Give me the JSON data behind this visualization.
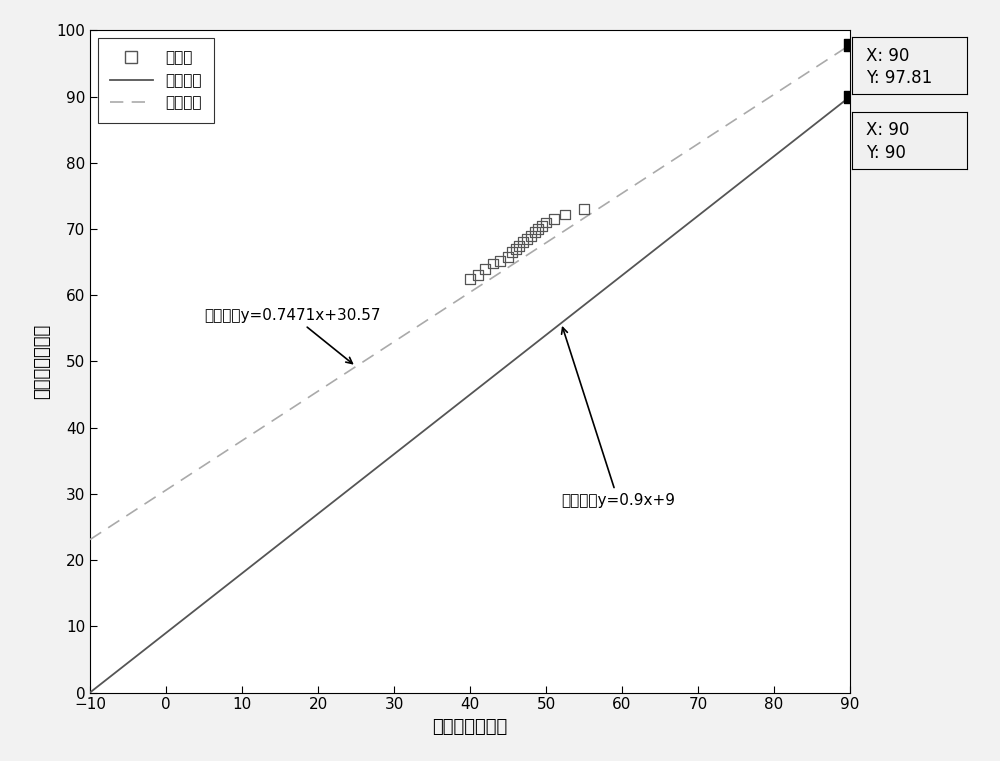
{
  "title": "",
  "xlabel": "油温（摄氏度）",
  "ylabel": "油位（百分比）",
  "xlim": [
    -10,
    90
  ],
  "ylim": [
    0,
    100
  ],
  "xticks": [
    -10,
    0,
    10,
    20,
    30,
    40,
    50,
    60,
    70,
    80,
    90
  ],
  "yticks": [
    0,
    10,
    20,
    30,
    40,
    50,
    60,
    70,
    80,
    90,
    100
  ],
  "std_line_slope": 0.9,
  "std_line_intercept": 9,
  "fit_line_slope": 0.7471,
  "fit_line_intercept": 30.57,
  "scatter_x": [
    40.0,
    41.0,
    42.0,
    43.0,
    44.0,
    45.0,
    45.5,
    46.0,
    46.5,
    47.0,
    47.5,
    48.0,
    48.5,
    49.0,
    49.5,
    50.0,
    51.0,
    52.5,
    55.0
  ],
  "scatter_y": [
    62.5,
    63.0,
    64.0,
    64.8,
    65.2,
    65.8,
    66.5,
    67.0,
    67.5,
    68.0,
    68.5,
    69.0,
    69.5,
    70.0,
    70.5,
    71.0,
    71.5,
    72.2,
    73.0
  ],
  "highlight_point1_x": 90,
  "highlight_point1_y": 97.81,
  "highlight_point2_x": 90,
  "highlight_point2_y": 90,
  "std_line_color": "#555555",
  "fit_line_color": "#aaaaaa",
  "scatter_color": "#555555",
  "annotation1_text": "拟合直线y=0.7471x+30.57",
  "annotation2_text": "标准直线y=0.9x+9",
  "legend_labels": [
    "实测点",
    "标准直线",
    "拟合直线"
  ],
  "background_color": "#ffffff",
  "figure_facecolor": "#f2f2f2"
}
